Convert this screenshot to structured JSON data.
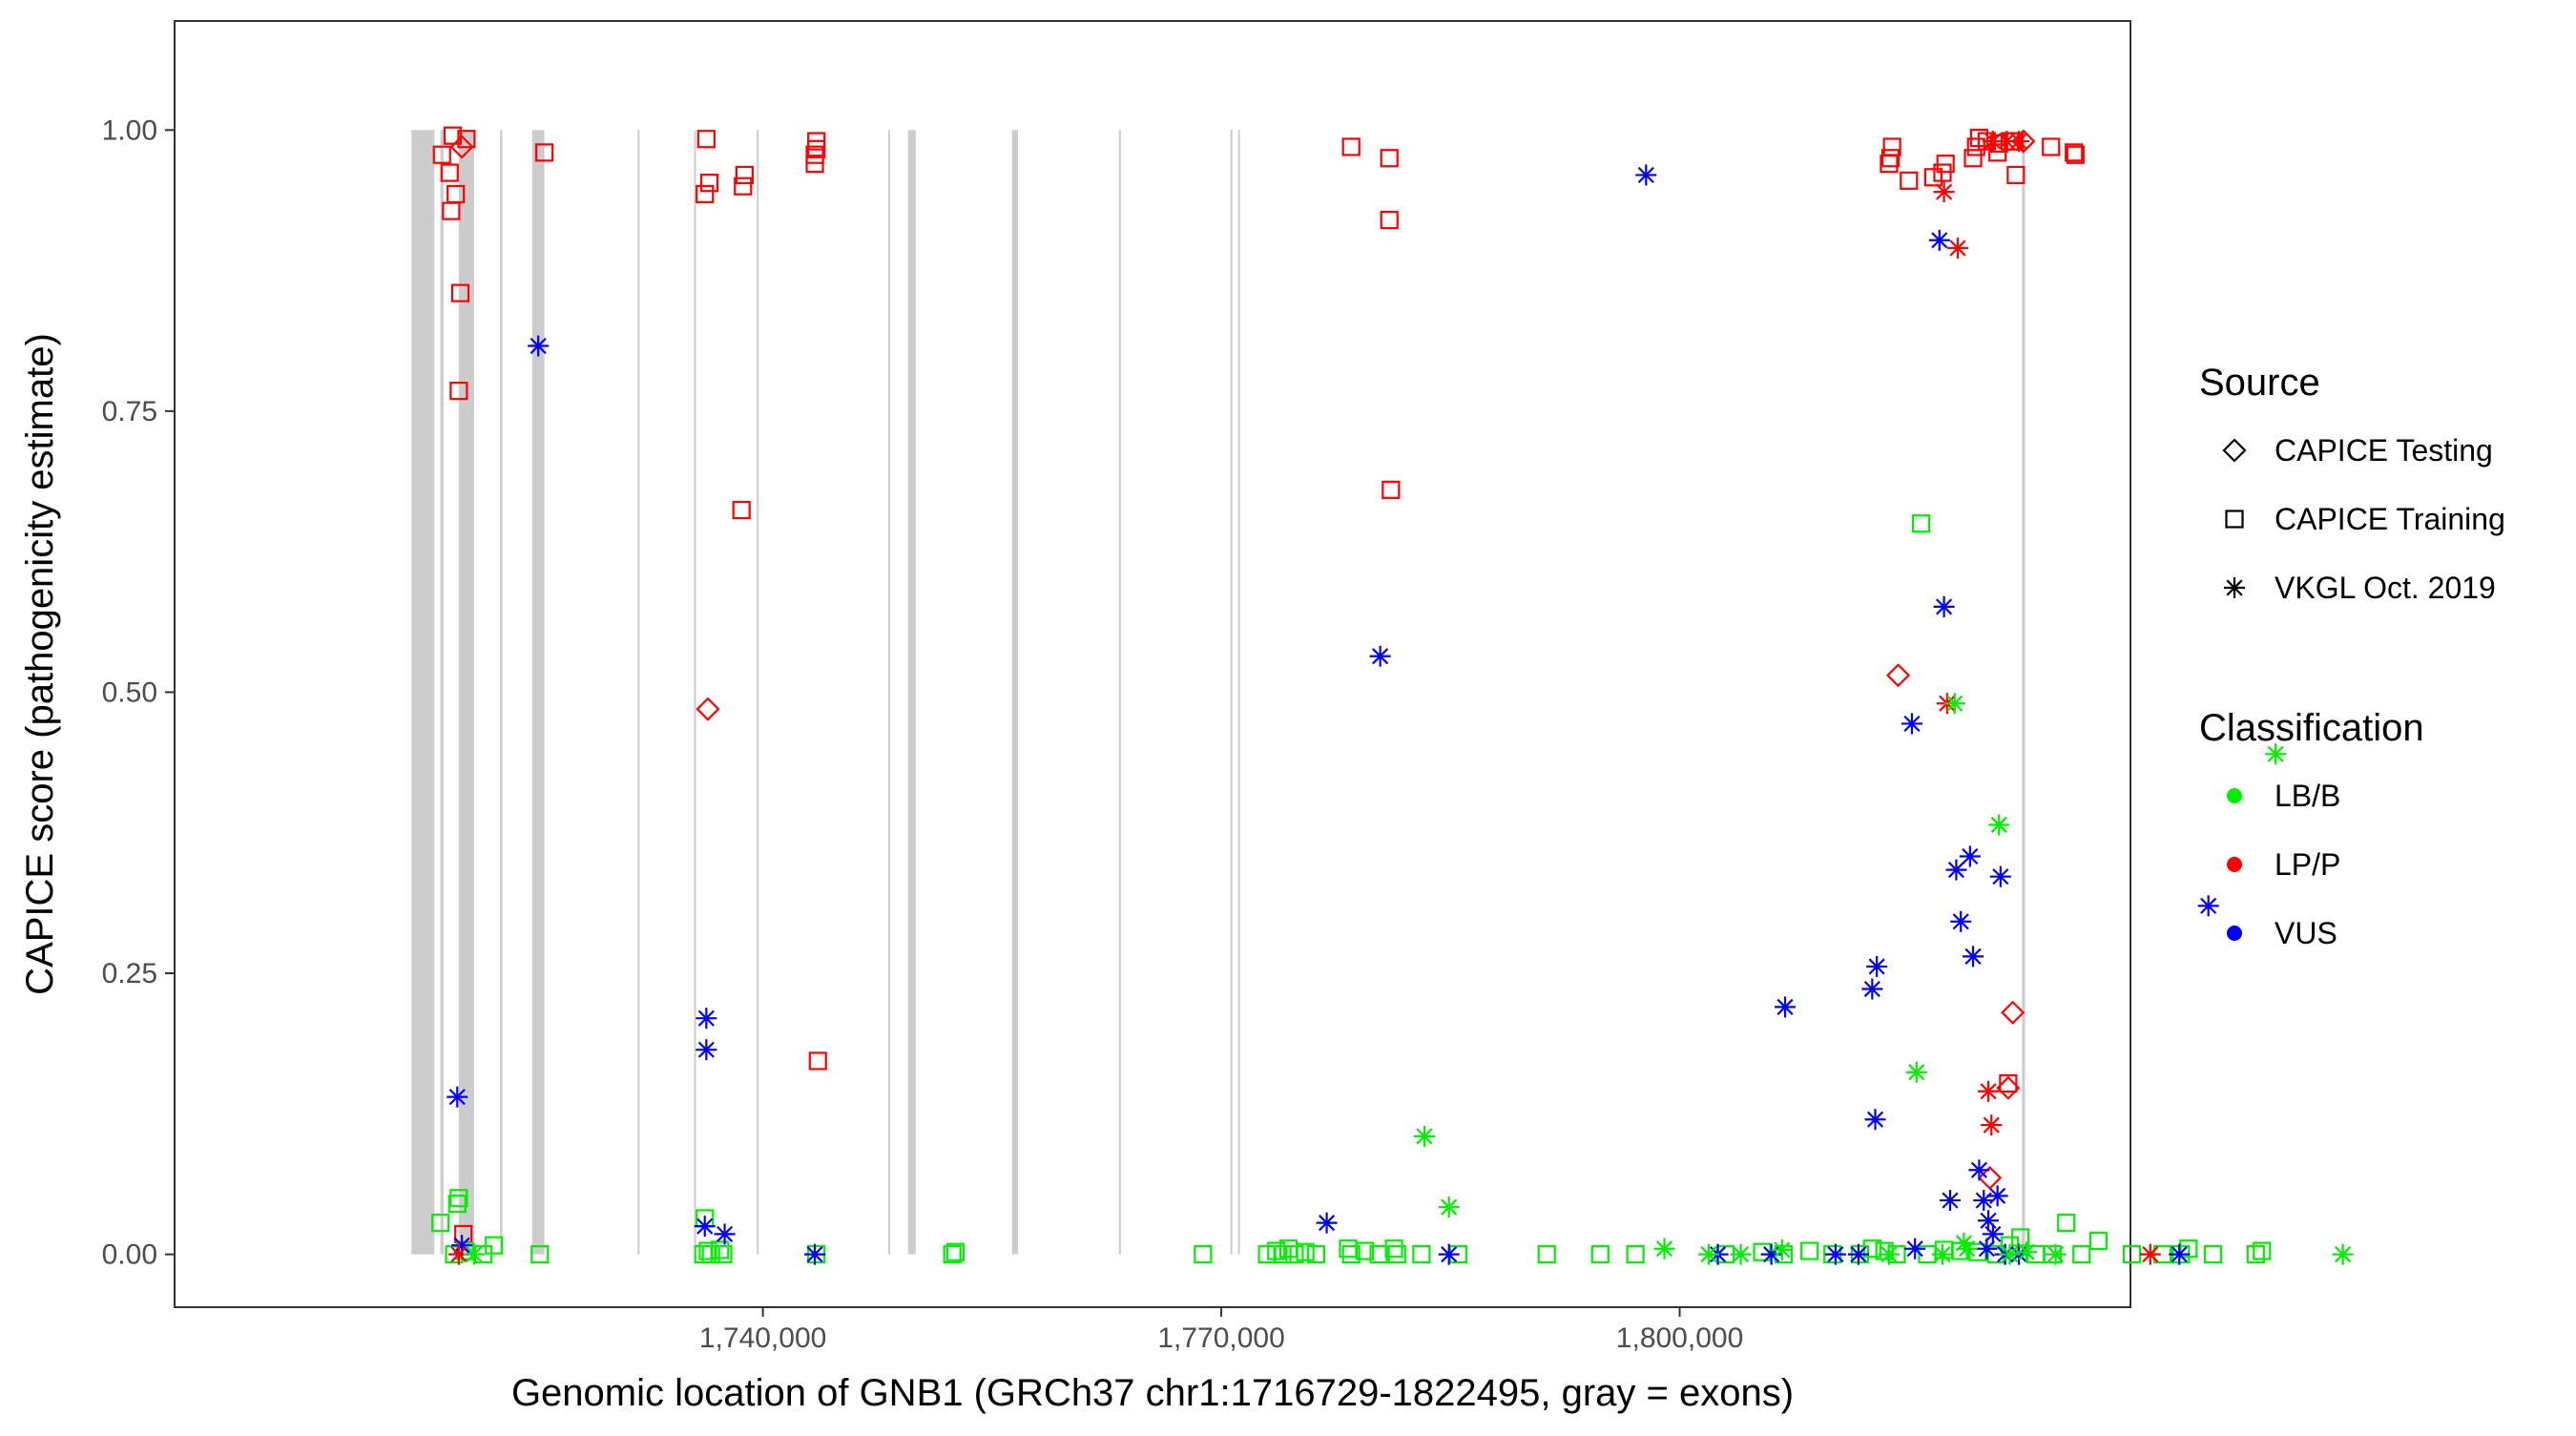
{
  "chart_data": {
    "type": "scatter",
    "title": "",
    "xlabel": "Genomic location of GNB1 (GRCh37 chr1:1716729-1822495, gray = exons)",
    "ylabel": "CAPICE score (pathogenicity estimate)",
    "xlim": [
      1701500,
      1829500
    ],
    "ylim": [
      -0.047,
      1.097
    ],
    "x_ticks": [
      1740000,
      1770000,
      1800000
    ],
    "x_tick_labels": [
      "1,740,000",
      "1,770,000",
      "1,800,000"
    ],
    "y_ticks": [
      0,
      0.25,
      0.5,
      0.75,
      1
    ],
    "y_tick_labels": [
      "0.00",
      "0.25",
      "0.50",
      "0.75",
      "1.00"
    ],
    "grid": false,
    "exons": [
      [
        1717000,
        1718500
      ],
      [
        1718900,
        1719100
      ],
      [
        1720100,
        1721100
      ],
      [
        1722800,
        1722950
      ],
      [
        1724900,
        1725700
      ],
      [
        1731800,
        1731900
      ],
      [
        1735500,
        1735600
      ],
      [
        1739600,
        1739700
      ],
      [
        1748200,
        1748300
      ],
      [
        1749500,
        1750000
      ],
      [
        1756300,
        1756700
      ],
      [
        1763300,
        1763400
      ],
      [
        1770600,
        1770700
      ],
      [
        1771100,
        1771200
      ],
      [
        1822400,
        1822600
      ]
    ],
    "legend": {
      "source_title": "Source",
      "source_items": [
        {
          "label": "CAPICE Testing",
          "shape": "diamond"
        },
        {
          "label": "CAPICE Training",
          "shape": "square"
        },
        {
          "label": "VKGL Oct. 2019",
          "shape": "asterisk"
        }
      ],
      "class_title": "Classification",
      "class_items": [
        {
          "label": "LB/B",
          "color": "#00ee00"
        },
        {
          "label": "LP/P",
          "color": "#ff0000"
        },
        {
          "label": "VUS",
          "color": "#0000ff"
        }
      ],
      "placement": "right"
    },
    "colors": {
      "LB/B": "#00ee00",
      "LP/P": "#ff0000",
      "VUS": "#0000ff",
      "exon": "#cccccc"
    },
    "series": [
      {
        "source": "CAPICE Testing",
        "class": "LP/P",
        "points": [
          [
            1720300,
            0.985
          ],
          [
            1736400,
            0.485
          ],
          [
            1814300,
            0.515
          ],
          [
            1820300,
            0.068
          ],
          [
            1821800,
            0.215
          ],
          [
            1821500,
            0.148
          ],
          [
            1822500,
            0.99
          ]
        ]
      },
      {
        "source": "CAPICE Training",
        "class": "LP/P",
        "points": [
          [
            1719000,
            0.978
          ],
          [
            1719700,
            0.995
          ],
          [
            1720600,
            0.992
          ],
          [
            1719500,
            0.962
          ],
          [
            1719900,
            0.943
          ],
          [
            1719600,
            0.928
          ],
          [
            1720200,
            0.855
          ],
          [
            1720100,
            0.768
          ],
          [
            1720400,
            0.018
          ],
          [
            1725700,
            0.98
          ],
          [
            1736300,
            0.992
          ],
          [
            1736500,
            0.953
          ],
          [
            1736200,
            0.943
          ],
          [
            1738800,
            0.96
          ],
          [
            1738700,
            0.95
          ],
          [
            1738600,
            0.662
          ],
          [
            1743500,
            0.99
          ],
          [
            1743500,
            0.983
          ],
          [
            1743400,
            0.978
          ],
          [
            1743400,
            0.97
          ],
          [
            1743600,
            0.172
          ],
          [
            1778500,
            0.985
          ],
          [
            1781000,
            0.975
          ],
          [
            1781000,
            0.92
          ],
          [
            1781100,
            0.68
          ],
          [
            1813900,
            0.985
          ],
          [
            1813800,
            0.975
          ],
          [
            1813700,
            0.97
          ],
          [
            1816600,
            0.958
          ],
          [
            1817200,
            0.962
          ],
          [
            1817400,
            0.97
          ],
          [
            1819200,
            0.975
          ],
          [
            1819400,
            0.985
          ],
          [
            1819600,
            0.993
          ],
          [
            1820100,
            0.99
          ],
          [
            1821800,
            0.99
          ],
          [
            1822000,
            0.96
          ],
          [
            1821600,
            0.99
          ],
          [
            1821900,
            0.99
          ],
          [
            1824300,
            0.985
          ],
          [
            1825800,
            0.98
          ],
          [
            1825900,
            0.978
          ],
          [
            1815000,
            0.955
          ],
          [
            1820800,
            0.98
          ],
          [
            1821500,
            0.152
          ],
          [
            1820900,
            0.988
          ]
        ]
      },
      {
        "source": "CAPICE Training",
        "class": "LB/B",
        "points": [
          [
            1718900,
            0.028
          ],
          [
            1720000,
            0.045
          ],
          [
            1720100,
            0.05
          ],
          [
            1719800,
            0.0
          ],
          [
            1720500,
            0.003
          ],
          [
            1721700,
            0.0
          ],
          [
            1722400,
            0.008
          ],
          [
            1725400,
            0.0
          ],
          [
            1736200,
            0.032
          ],
          [
            1736100,
            0.0
          ],
          [
            1736400,
            0.003
          ],
          [
            1736600,
            0.0
          ],
          [
            1737200,
            0.004
          ],
          [
            1737400,
            0.0
          ],
          [
            1743500,
            0.0
          ],
          [
            1752400,
            0.0
          ],
          [
            1752600,
            0.002
          ],
          [
            1768800,
            0.0
          ],
          [
            1773000,
            0.0
          ],
          [
            1773600,
            0.003
          ],
          [
            1774000,
            0.0
          ],
          [
            1774400,
            0.005
          ],
          [
            1774800,
            0.0
          ],
          [
            1775500,
            0.002
          ],
          [
            1776200,
            0.0
          ],
          [
            1778300,
            0.005
          ],
          [
            1778500,
            0.0
          ],
          [
            1779400,
            0.003
          ],
          [
            1780300,
            0.0
          ],
          [
            1781300,
            0.005
          ],
          [
            1781500,
            0.0
          ],
          [
            1783100,
            0.0
          ],
          [
            1785500,
            0.0
          ],
          [
            1791300,
            0.0
          ],
          [
            1794800,
            0.0
          ],
          [
            1797100,
            0.0
          ],
          [
            1803000,
            0.0
          ],
          [
            1805400,
            0.002
          ],
          [
            1806800,
            0.0
          ],
          [
            1808500,
            0.003
          ],
          [
            1810000,
            0.0
          ],
          [
            1811800,
            0.0
          ],
          [
            1812600,
            0.005
          ],
          [
            1813400,
            0.003
          ],
          [
            1814200,
            0.0
          ],
          [
            1815800,
            0.65
          ],
          [
            1816200,
            0.0
          ],
          [
            1817300,
            0.004
          ],
          [
            1818400,
            0.003
          ],
          [
            1819500,
            0.002
          ],
          [
            1820700,
            0.0
          ],
          [
            1821600,
            0.008
          ],
          [
            1822300,
            0.015
          ],
          [
            1823300,
            0.0
          ],
          [
            1824400,
            0.0
          ],
          [
            1825300,
            0.028
          ],
          [
            1826300,
            0.0
          ],
          [
            1827400,
            0.012
          ],
          [
            1829600,
            0.0
          ],
          [
            1831600,
            0.0
          ],
          [
            1832800,
            0.0
          ],
          [
            1833300,
            0.005
          ],
          [
            1834900,
            0.0
          ],
          [
            1837700,
            0.0
          ],
          [
            1838100,
            0.003
          ]
        ]
      },
      {
        "source": "VKGL Oct. 2019",
        "class": "VUS",
        "points": [
          [
            1720000,
            0.14
          ],
          [
            1720300,
            0.008
          ],
          [
            1725300,
            0.808
          ],
          [
            1736300,
            0.21
          ],
          [
            1736300,
            0.182
          ],
          [
            1736200,
            0.025
          ],
          [
            1737500,
            0.018
          ],
          [
            1743400,
            0.0
          ],
          [
            1776900,
            0.028
          ],
          [
            1780400,
            0.532
          ],
          [
            1784900,
            0.0
          ],
          [
            1797800,
            0.96
          ],
          [
            1802500,
            0.0
          ],
          [
            1806900,
            0.22
          ],
          [
            1806000,
            0.0
          ],
          [
            1810200,
            0.0
          ],
          [
            1811700,
            0.0
          ],
          [
            1812600,
            0.236
          ],
          [
            1812900,
            0.256
          ],
          [
            1812800,
            0.12
          ],
          [
            1815200,
            0.472
          ],
          [
            1815400,
            0.005
          ],
          [
            1817000,
            0.902
          ],
          [
            1817300,
            0.576
          ],
          [
            1818100,
            0.342
          ],
          [
            1818400,
            0.296
          ],
          [
            1819000,
            0.354
          ],
          [
            1819200,
            0.265
          ],
          [
            1819600,
            0.075
          ],
          [
            1819900,
            0.048
          ],
          [
            1820200,
            0.03
          ],
          [
            1820500,
            0.018
          ],
          [
            1820100,
            0.005
          ],
          [
            1821000,
            0.336
          ],
          [
            1820800,
            0.052
          ],
          [
            1817700,
            0.048
          ],
          [
            1821300,
            0.0
          ],
          [
            1822200,
            0.0
          ],
          [
            1834600,
            0.31
          ],
          [
            1832700,
            0.0
          ]
        ]
      },
      {
        "source": "VKGL Oct. 2019",
        "class": "LP/P",
        "points": [
          [
            1720100,
            0.0
          ],
          [
            1817300,
            0.945
          ],
          [
            1818200,
            0.895
          ],
          [
            1817500,
            0.49
          ],
          [
            1820200,
            0.145
          ],
          [
            1820400,
            0.115
          ],
          [
            1820500,
            0.99
          ],
          [
            1821400,
            0.99
          ],
          [
            1822200,
            0.99
          ],
          [
            1830800,
            0.0
          ]
        ]
      },
      {
        "source": "VKGL Oct. 2019",
        "class": "LB/B",
        "points": [
          [
            1721100,
            0.0
          ],
          [
            1783300,
            0.105
          ],
          [
            1784900,
            0.042
          ],
          [
            1799000,
            0.005
          ],
          [
            1801900,
            0.0
          ],
          [
            1804000,
            0.0
          ],
          [
            1806700,
            0.004
          ],
          [
            1813700,
            0.0
          ],
          [
            1815500,
            0.162
          ],
          [
            1818000,
            0.49
          ],
          [
            1817200,
            0.0
          ],
          [
            1818600,
            0.01
          ],
          [
            1818800,
            0.005
          ],
          [
            1820900,
            0.382
          ],
          [
            1821600,
            0.0
          ],
          [
            1822700,
            0.002
          ],
          [
            1824600,
            0.0
          ],
          [
            1839000,
            0.445
          ],
          [
            1843400,
            0.0
          ]
        ]
      }
    ]
  }
}
